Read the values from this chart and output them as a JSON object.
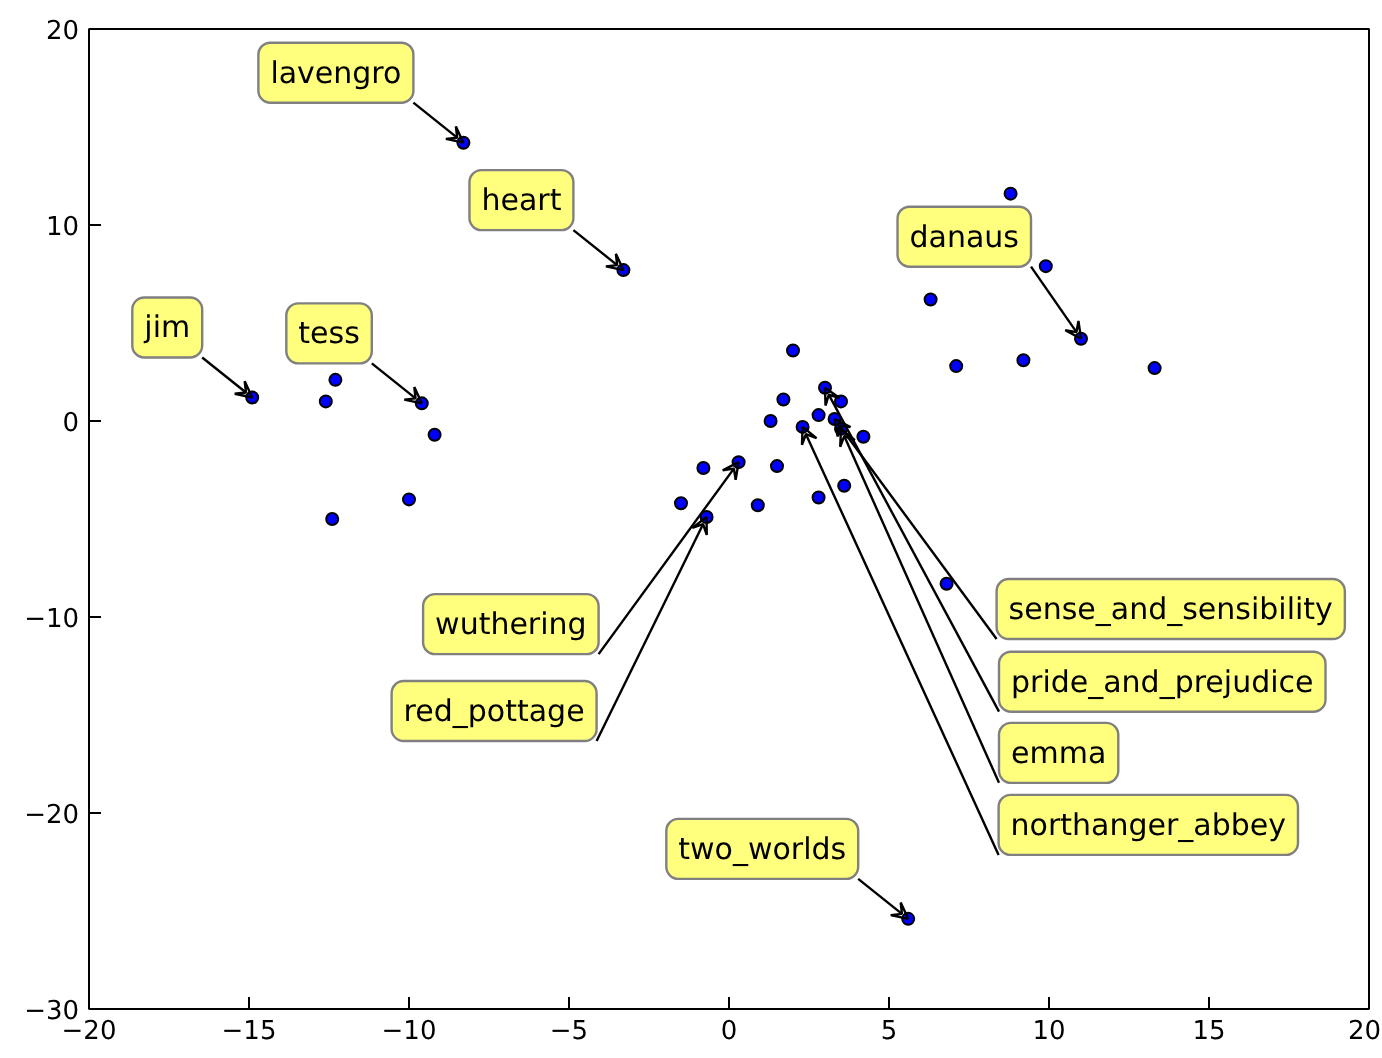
{
  "chart_data": {
    "type": "scatter",
    "marker": "circle",
    "grid": false,
    "x": [
      -8.3,
      -3.3,
      -14.9,
      -12.3,
      -12.6,
      -12.4,
      -10.0,
      -9.6,
      -9.2,
      6.3,
      8.8,
      9.9,
      11.0,
      7.1,
      9.2,
      13.3,
      6.8,
      5.6,
      -1.5,
      -0.7,
      0.9,
      2.8,
      3.6,
      4.2,
      3.5,
      3.3,
      3.0,
      3.5,
      2.8,
      2.3,
      1.7,
      2.0,
      1.5,
      0.3,
      -0.8,
      1.3
    ],
    "series": [
      {
        "color": "#0000ff",
        "values": [
          14.2,
          7.7,
          1.2,
          2.1,
          1.0,
          -5.0,
          -4.0,
          0.9,
          -0.7,
          6.2,
          11.6,
          7.9,
          4.2,
          2.8,
          3.1,
          2.7,
          -8.3,
          -25.4,
          -4.2,
          -4.9,
          -4.3,
          -3.9,
          -3.3,
          -0.8,
          -0.4,
          0.1,
          1.7,
          1.0,
          0.3,
          -0.3,
          1.1,
          3.6,
          -2.3,
          -2.1,
          -2.4,
          0.0
        ]
      }
    ],
    "xlim": [
      -20,
      20
    ],
    "ylim": [
      -30,
      20
    ],
    "xticks": [
      -20,
      -15,
      -10,
      -5,
      0,
      5,
      10,
      15,
      20
    ],
    "yticks": [
      -30,
      -20,
      -10,
      0,
      10,
      20
    ],
    "annotations": [
      {
        "text": "lavengro",
        "x": -8.3,
        "y": 14.2
      },
      {
        "text": "heart",
        "x": -3.3,
        "y": 7.7
      },
      {
        "text": "jim",
        "x": -14.9,
        "y": 1.2
      },
      {
        "text": "tess",
        "x": -9.6,
        "y": 0.9
      },
      {
        "text": "danaus",
        "x": 11.0,
        "y": 4.2
      },
      {
        "text": "two_worlds",
        "x": 5.6,
        "y": -25.4
      },
      {
        "text": "sense_and_sensibility",
        "x": 3.3,
        "y": 0.1
      },
      {
        "text": "pride_and_prejudice",
        "x": 3.0,
        "y": 1.7
      },
      {
        "text": "emma",
        "x": 3.5,
        "y": -0.4
      },
      {
        "text": "northanger_abbey",
        "x": 2.3,
        "y": -0.3
      },
      {
        "text": "wuthering",
        "x": 0.3,
        "y": -2.1
      },
      {
        "text": "red_pottage",
        "x": -0.7,
        "y": -4.9
      }
    ]
  }
}
